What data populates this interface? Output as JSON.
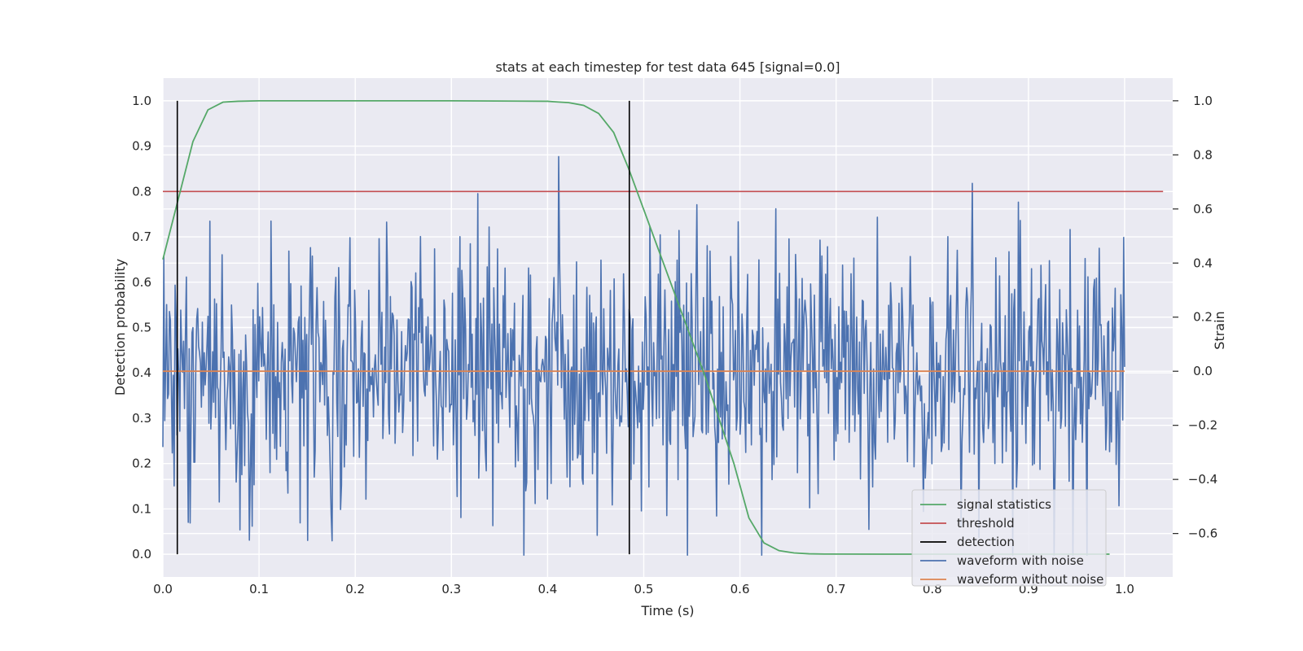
{
  "chart_data": {
    "type": "line",
    "title": "stats at each timestep for test data 645 [signal=0.0]",
    "xlabel": "Time (s)",
    "ylabel": "Detection probability",
    "y2label": "Strain",
    "xlim": [
      0.0,
      1.05
    ],
    "ylim": [
      -0.05,
      1.05
    ],
    "y2lim": [
      -0.7606,
      1.0838
    ],
    "xticks": [
      "0.0",
      "0.1",
      "0.2",
      "0.3",
      "0.4",
      "0.5",
      "0.6",
      "0.7",
      "0.8",
      "0.9",
      "1.0"
    ],
    "yticks": [
      "0.0",
      "0.1",
      "0.2",
      "0.3",
      "0.4",
      "0.5",
      "0.6",
      "0.7",
      "0.8",
      "0.9",
      "1.0"
    ],
    "y2ticks": [
      "−0.6",
      "−0.4",
      "−0.2",
      "0.0",
      "0.2",
      "0.4",
      "0.6",
      "0.8",
      "1.0"
    ],
    "grid": true,
    "legend_position": "bottom-right",
    "series": [
      {
        "name": "signal statistics",
        "color": "#55a868",
        "axis": "left",
        "x": [
          0.0,
          0.015625,
          0.03125,
          0.046875,
          0.0625,
          0.078125,
          0.1,
          0.2,
          0.3,
          0.4,
          0.40625,
          0.421875,
          0.4375,
          0.453125,
          0.46875,
          0.484375,
          0.5,
          0.515625,
          0.53125,
          0.546875,
          0.5625,
          0.578125,
          0.59375,
          0.609375,
          0.625,
          0.640625,
          0.65625,
          0.671875,
          0.6875,
          0.75,
          0.8,
          0.9,
          0.984375
        ],
        "values": [
          0.65,
          0.78,
          0.91,
          0.98,
          0.997,
          0.999,
          1.0,
          1.0,
          1.0,
          0.999,
          0.998,
          0.996,
          0.99,
          0.972,
          0.93,
          0.85,
          0.76,
          0.67,
          0.58,
          0.49,
          0.4,
          0.3,
          0.2,
          0.08,
          0.025,
          0.008,
          0.003,
          0.001,
          0.0005,
          0.0003,
          0.0002,
          0.0002,
          0.0002
        ]
      },
      {
        "name": "threshold",
        "color": "#c44e52",
        "axis": "left",
        "x": [
          0.0,
          1.04
        ],
        "values": [
          0.8,
          0.8
        ]
      },
      {
        "name": "detection",
        "color": "#000000",
        "axis": "left",
        "segments": [
          {
            "x": 0.015,
            "y": [
              0.0,
              1.0
            ]
          },
          {
            "x": 0.485,
            "y": [
              0.0,
              1.0
            ]
          }
        ]
      },
      {
        "name": "waveform with noise",
        "color": "#4c72b0",
        "axis": "right",
        "sample_count": 1024,
        "x_range": [
          0.0,
          1.0
        ],
        "values": "not individually legible (~1024 samples, strain noise roughly between -0.65 and 1.0)"
      },
      {
        "name": "waveform without noise",
        "color": "#dd8452",
        "axis": "right",
        "x": [
          0.0,
          1.0
        ],
        "values": [
          0.0,
          0.0
        ]
      }
    ],
    "legend": [
      "signal statistics",
      "threshold",
      "detection",
      "waveform with noise",
      "waveform without noise"
    ]
  }
}
